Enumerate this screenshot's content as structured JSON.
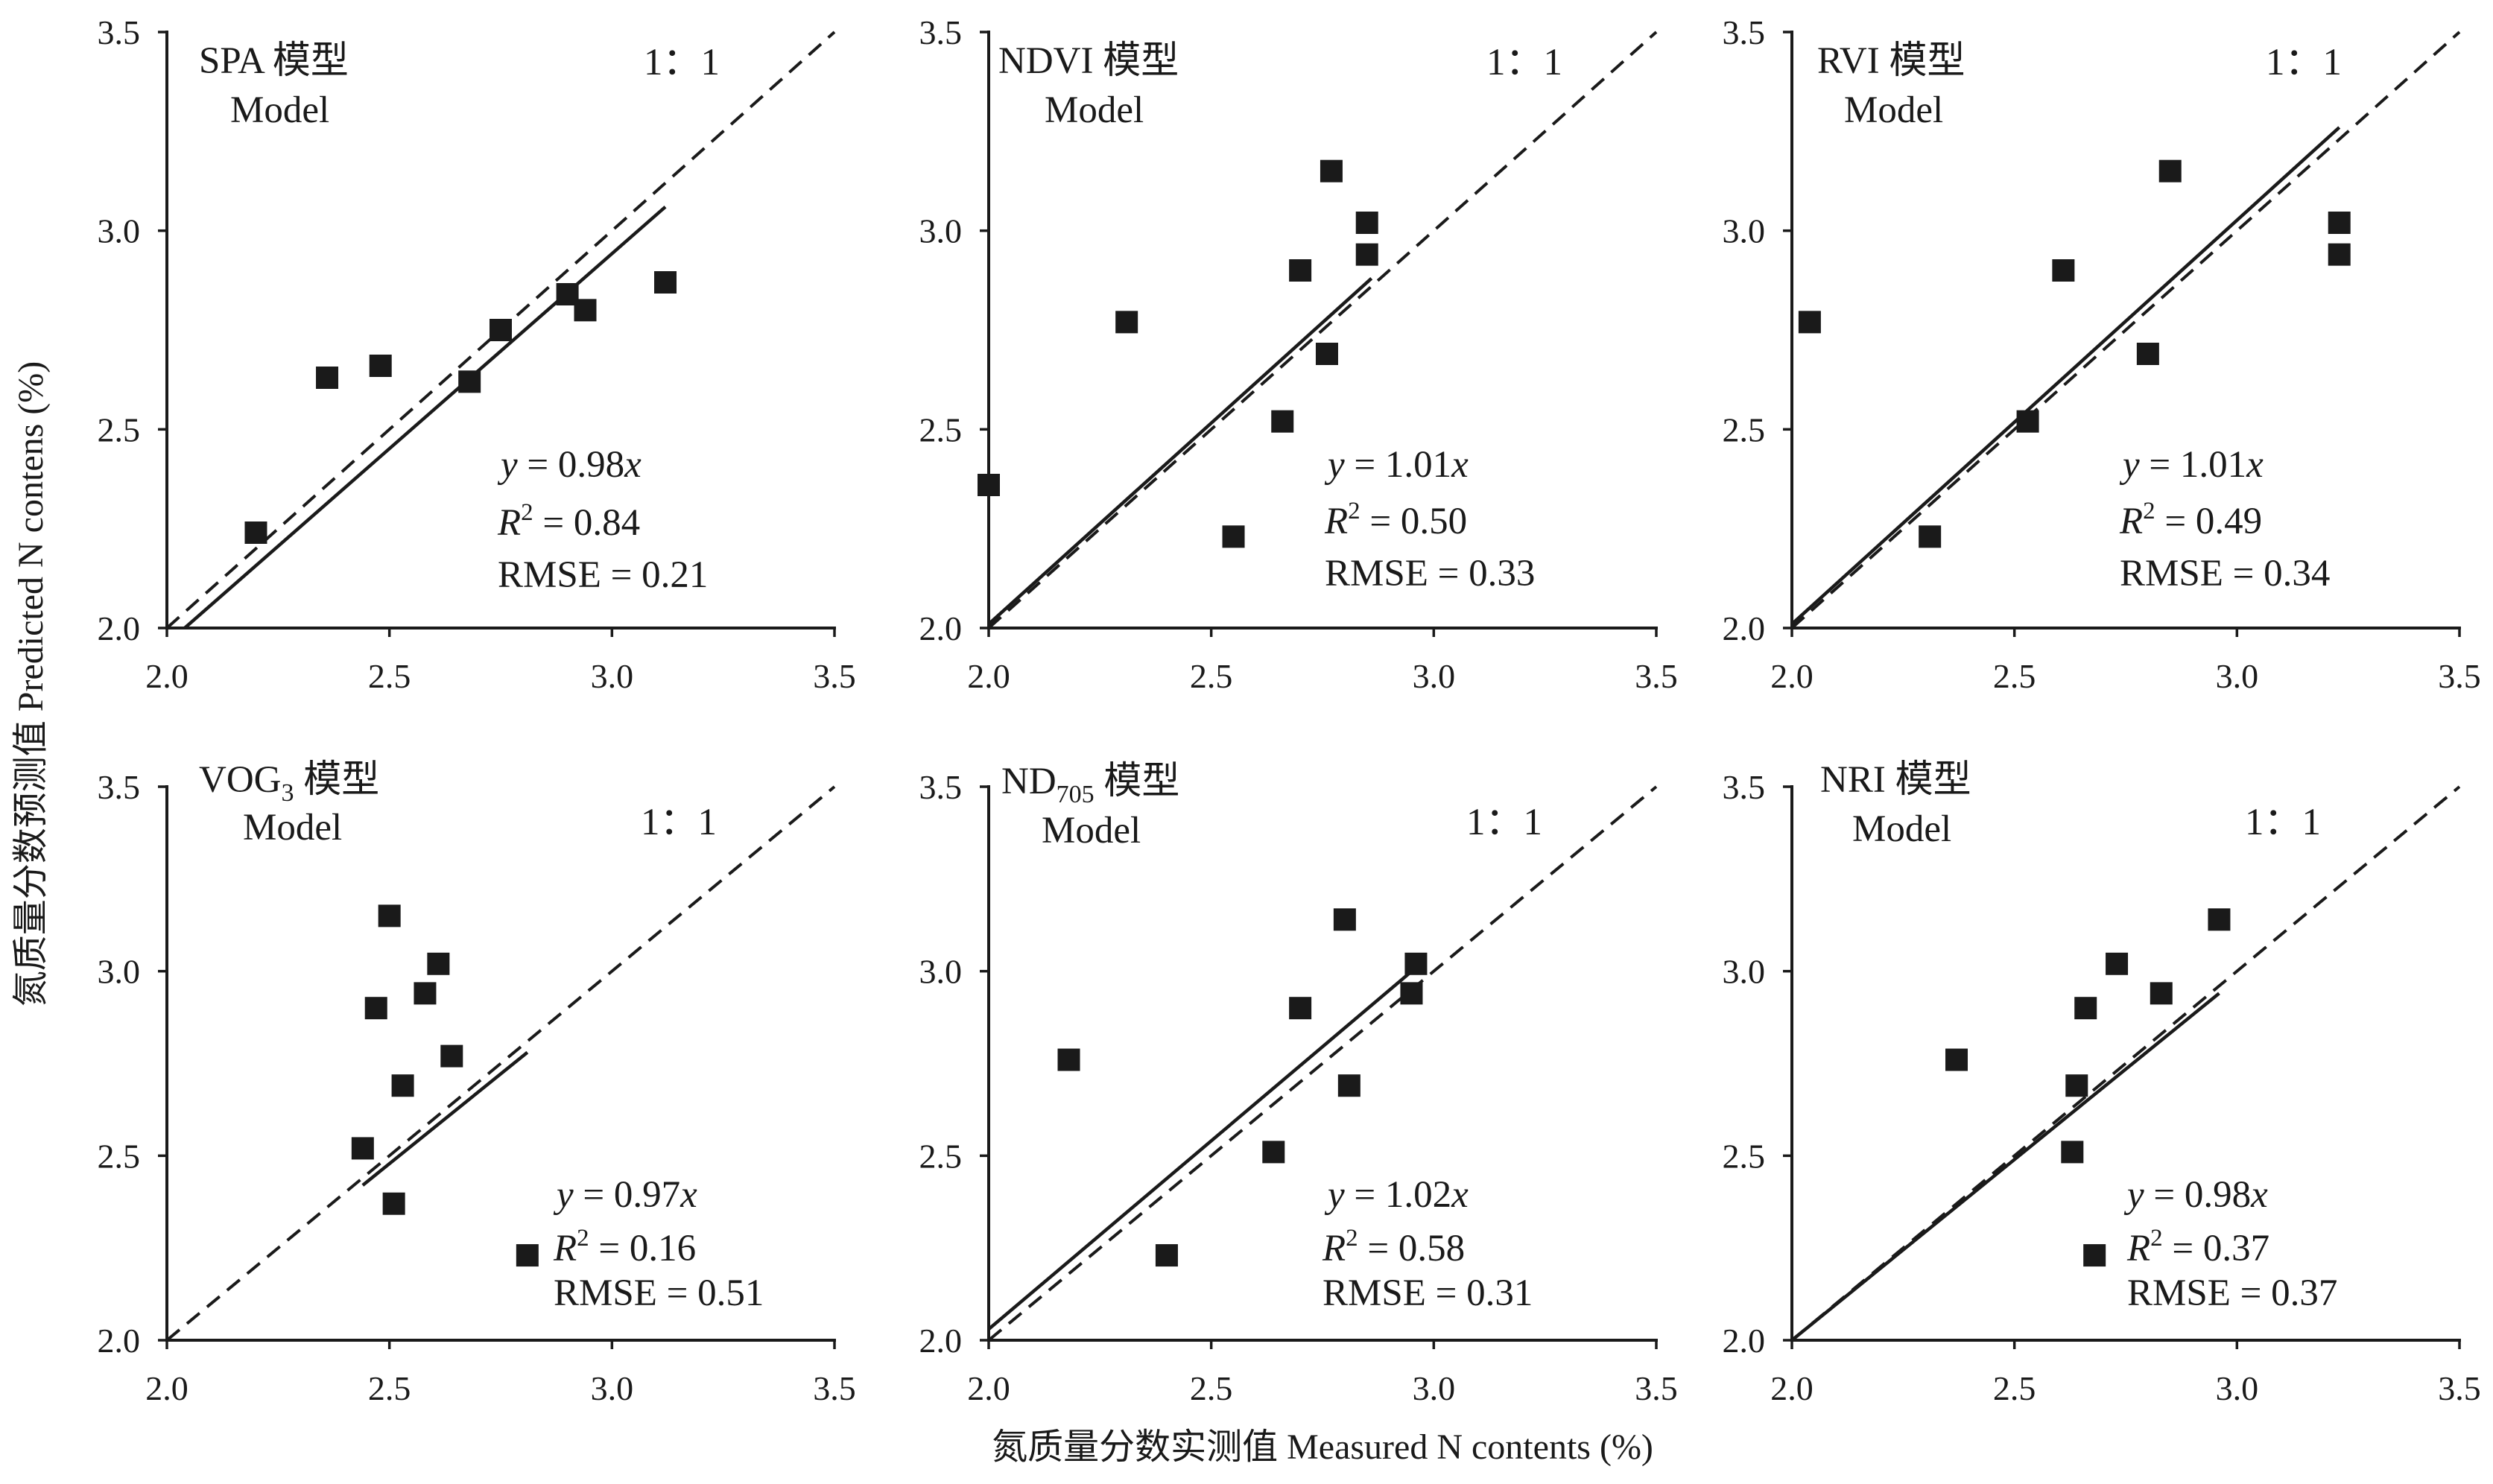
{
  "figure": {
    "ylabel": "氮质量分数预测值 Predicted N contens (%)",
    "xlabel": "氮质量分数实测值 Measured N contents (%)",
    "tick_values": [
      2.0,
      2.5,
      3.0,
      3.5
    ],
    "tick_labels": [
      "2.0",
      "2.5",
      "3.0",
      "3.5"
    ],
    "marker_color": "#1a1a1a",
    "line_color": "#1a1a1a"
  },
  "chart_data": [
    {
      "type": "scatter",
      "title_main": "SPA",
      "title_suffix": " 模型",
      "model_label": "Model",
      "ratio_label": "1：1",
      "eq_y": "y",
      "eq_mid": " = 0.98",
      "eq_x": "x",
      "r2_r": "R",
      "r2_sup": "2",
      "r2_mid": " = 0.84",
      "rmse": "RMSE = 0.21",
      "xlim": [
        2.0,
        3.5
      ],
      "ylim": [
        2.0,
        3.5
      ],
      "grid": false,
      "x": [
        2.2,
        2.36,
        2.48,
        2.68,
        2.75,
        2.9,
        2.94,
        3.12
      ],
      "y": [
        2.24,
        2.63,
        2.66,
        2.62,
        2.75,
        2.84,
        2.8,
        2.87
      ],
      "fit_line": {
        "x": [
          2.04,
          3.12
        ],
        "y": [
          2.0,
          3.06
        ]
      },
      "identity_line": {
        "x": [
          2.0,
          3.5
        ],
        "y": [
          2.0,
          3.5
        ]
      }
    },
    {
      "type": "scatter",
      "title_main": "NDVI",
      "title_suffix": " 模型",
      "model_label": "Model",
      "ratio_label": "1：1",
      "eq_y": "y",
      "eq_mid": " = 1.01",
      "eq_x": "x",
      "r2_r": "R",
      "r2_sup": "2",
      "r2_mid": " = 0.50",
      "rmse": "RMSE = 0.33",
      "xlim": [
        2.0,
        3.5
      ],
      "ylim": [
        2.0,
        3.5
      ],
      "grid": false,
      "x": [
        2.0,
        2.31,
        2.55,
        2.66,
        2.7,
        2.76,
        2.77,
        2.85,
        2.85
      ],
      "y": [
        2.36,
        2.77,
        2.23,
        2.52,
        2.9,
        2.69,
        3.15,
        3.02,
        2.94
      ],
      "fit_line": {
        "x": [
          2.0,
          2.86
        ],
        "y": [
          2.01,
          2.88
        ]
      },
      "identity_line": {
        "x": [
          2.0,
          3.5
        ],
        "y": [
          2.0,
          3.5
        ]
      }
    },
    {
      "type": "scatter",
      "title_main": "RVI",
      "title_suffix": " 模型",
      "model_label": "Model",
      "ratio_label": "1：1",
      "eq_y": "y",
      "eq_mid": " = 1.01",
      "eq_x": "x",
      "r2_r": "R",
      "r2_sup": "2",
      "r2_mid": " = 0.49",
      "rmse": "RMSE = 0.34",
      "xlim": [
        2.0,
        3.5
      ],
      "ylim": [
        2.0,
        3.5
      ],
      "grid": false,
      "x": [
        2.04,
        2.31,
        2.53,
        2.61,
        2.8,
        2.85,
        3.23,
        3.23
      ],
      "y": [
        2.77,
        2.23,
        2.52,
        2.9,
        2.69,
        3.15,
        3.02,
        2.94
      ],
      "fit_line": {
        "x": [
          2.0,
          3.23
        ],
        "y": [
          2.01,
          3.26
        ]
      },
      "identity_line": {
        "x": [
          2.0,
          3.5
        ],
        "y": [
          2.0,
          3.5
        ]
      }
    },
    {
      "type": "scatter",
      "title_main": "VOG",
      "title_sub": "3",
      "title_suffix": " 模型",
      "model_label": "Model",
      "ratio_label": "1：1",
      "eq_y": "y",
      "eq_mid": " = 0.97",
      "eq_x": "x",
      "r2_r": "R",
      "r2_sup": "2",
      "r2_mid": " = 0.16",
      "rmse": "RMSE = 0.51",
      "xlim": [
        2.0,
        3.5
      ],
      "ylim": [
        2.0,
        3.5
      ],
      "grid": false,
      "x": [
        2.44,
        2.47,
        2.5,
        2.51,
        2.53,
        2.58,
        2.61,
        2.64,
        2.81
      ],
      "y": [
        2.52,
        2.9,
        3.15,
        2.37,
        2.69,
        2.94,
        3.02,
        2.77,
        2.23
      ],
      "fit_line": {
        "x": [
          2.44,
          2.81
        ],
        "y": [
          2.42,
          2.78
        ]
      },
      "identity_line": {
        "x": [
          2.0,
          3.5
        ],
        "y": [
          2.0,
          3.5
        ]
      }
    },
    {
      "type": "scatter",
      "title_main": "ND",
      "title_sub": "705",
      "title_suffix": " 模型",
      "model_label": "Model",
      "ratio_label": "1：1",
      "eq_y": "y",
      "eq_mid": " = 1.02",
      "eq_x": "x",
      "r2_r": "R",
      "r2_sup": "2",
      "r2_mid": " = 0.58",
      "rmse": "RMSE = 0.31",
      "xlim": [
        2.0,
        3.5
      ],
      "ylim": [
        2.0,
        3.5
      ],
      "grid": false,
      "x": [
        2.18,
        2.4,
        2.64,
        2.7,
        2.8,
        2.81,
        2.95,
        2.96
      ],
      "y": [
        2.76,
        2.23,
        2.51,
        2.9,
        3.14,
        2.69,
        2.94,
        3.02
      ],
      "fit_line": {
        "x": [
          2.0,
          2.98
        ],
        "y": [
          2.03,
          3.03
        ]
      },
      "identity_line": {
        "x": [
          2.0,
          3.5
        ],
        "y": [
          2.0,
          3.5
        ]
      }
    },
    {
      "type": "scatter",
      "title_main": "NRI",
      "title_suffix": " 模型",
      "model_label": "Model",
      "ratio_label": "1：1",
      "eq_y": "y",
      "eq_mid": " = 0.98",
      "eq_x": "x",
      "r2_r": "R",
      "r2_sup": "2",
      "r2_mid": " = 0.37",
      "rmse": "RMSE = 0.37",
      "xlim": [
        2.0,
        3.5
      ],
      "ylim": [
        2.0,
        3.5
      ],
      "grid": false,
      "x": [
        2.37,
        2.63,
        2.64,
        2.66,
        2.68,
        2.73,
        2.83,
        2.96
      ],
      "y": [
        2.76,
        2.51,
        2.69,
        2.9,
        2.23,
        3.02,
        2.94,
        3.14
      ],
      "fit_line": {
        "x": [
          2.0,
          2.96
        ],
        "y": [
          2.0,
          2.94
        ]
      },
      "identity_line": {
        "x": [
          2.0,
          3.5
        ],
        "y": [
          2.0,
          3.5
        ]
      }
    }
  ]
}
